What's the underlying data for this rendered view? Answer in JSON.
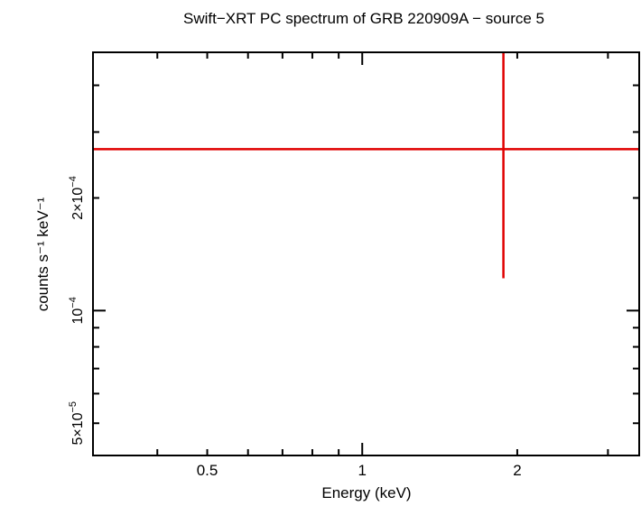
{
  "chart_data": {
    "type": "scatter",
    "title": "Swift−XRT PC spectrum of GRB 220909A − source 5",
    "xlabel": "Energy (keV)",
    "ylabel": "counts s⁻¹ keV⁻¹",
    "x_scale": "log",
    "y_scale": "log",
    "xlim": [
      0.3,
      3.45
    ],
    "ylim": [
      4.1e-05,
      0.00049
    ],
    "x_tick_labels": [
      {
        "value": 0.5,
        "label": "0.5"
      },
      {
        "value": 1,
        "label": "1"
      },
      {
        "value": 2,
        "label": "2"
      }
    ],
    "y_tick_labels": [
      {
        "value": 5e-05,
        "base": "5×10",
        "exp": "−5"
      },
      {
        "value": 0.0001,
        "base": "10",
        "exp": "−4"
      },
      {
        "value": 0.0002,
        "base": "2×10",
        "exp": "−4"
      }
    ],
    "grid": false,
    "series": [
      {
        "color": "#e00000",
        "points": [
          {
            "x": 1.88,
            "x_low": 0.3,
            "x_high": 3.45,
            "y": 0.00027,
            "y_low": 0.000122,
            "y_high": 0.00049
          }
        ]
      }
    ]
  }
}
